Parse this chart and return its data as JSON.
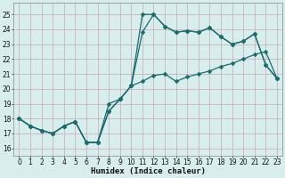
{
  "xlabel": "Humidex (Indice chaleur)",
  "background_color": "#d8eeec",
  "grid_color": "#c8a8b8",
  "line_color": "#1a6b6b",
  "xlim": [
    -0.5,
    23.5
  ],
  "ylim": [
    15.5,
    25.8
  ],
  "xticks": [
    0,
    1,
    2,
    3,
    4,
    5,
    6,
    7,
    8,
    9,
    10,
    11,
    12,
    13,
    14,
    15,
    16,
    17,
    18,
    19,
    20,
    21,
    22,
    23
  ],
  "yticks": [
    16,
    17,
    18,
    19,
    20,
    21,
    22,
    23,
    24,
    25
  ],
  "series1_x": [
    0,
    1,
    2,
    3,
    4,
    5,
    6,
    7,
    8,
    9,
    10,
    11,
    12,
    13,
    14,
    15,
    16,
    17,
    18,
    19,
    20,
    21,
    22,
    23
  ],
  "series1_y": [
    18.0,
    17.5,
    17.2,
    17.0,
    17.5,
    17.8,
    16.4,
    16.4,
    19.0,
    19.3,
    20.2,
    20.5,
    20.9,
    21.0,
    20.5,
    20.8,
    21.0,
    21.2,
    21.5,
    21.7,
    22.0,
    22.3,
    22.5,
    20.7
  ],
  "series2_x": [
    0,
    1,
    2,
    3,
    4,
    5,
    6,
    7,
    8,
    9,
    10,
    11,
    12,
    13,
    14,
    15,
    16,
    17,
    18,
    19,
    20,
    21,
    22,
    23
  ],
  "series2_y": [
    18.0,
    17.5,
    17.2,
    17.0,
    17.5,
    17.8,
    16.4,
    16.4,
    18.5,
    19.3,
    20.2,
    25.0,
    25.0,
    24.2,
    23.8,
    23.9,
    23.8,
    24.1,
    23.5,
    23.0,
    23.2,
    23.7,
    21.6,
    20.7
  ],
  "series3_x": [
    0,
    1,
    2,
    3,
    4,
    5,
    6,
    7,
    8,
    9,
    10,
    11,
    12,
    13,
    14,
    15,
    16,
    17,
    18,
    19,
    20,
    21,
    22,
    23
  ],
  "series3_y": [
    18.0,
    17.5,
    17.2,
    17.0,
    17.5,
    17.8,
    16.4,
    16.4,
    18.5,
    19.3,
    20.2,
    23.8,
    25.0,
    24.2,
    23.8,
    23.9,
    23.8,
    24.1,
    23.5,
    23.0,
    23.2,
    23.7,
    21.6,
    20.7
  ],
  "tick_fontsize": 5.5,
  "xlabel_fontsize": 6.5
}
